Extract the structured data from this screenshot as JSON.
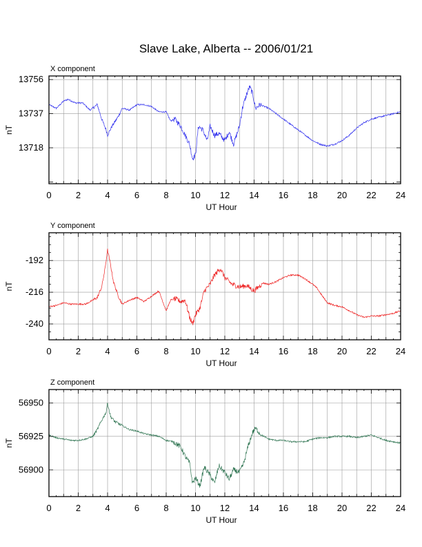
{
  "title": "Slave Lake, Alberta -- 2006/01/21",
  "chart_data": [
    {
      "type": "line",
      "title": "X component",
      "xlabel": "UT Hour",
      "ylabel": "nT",
      "xlim": [
        0,
        24
      ],
      "ylim": [
        13698,
        13758
      ],
      "xticks": [
        0,
        2,
        4,
        6,
        8,
        10,
        12,
        14,
        16,
        18,
        20,
        22,
        24
      ],
      "yticks": [
        13718,
        13737,
        13756
      ],
      "color": "#3333ee",
      "grid": true,
      "series": [
        {
          "x": [
            0,
            0.5,
            1,
            1.3,
            1.8,
            2.3,
            2.8,
            3.3,
            3.6,
            3.9,
            4.0,
            4.3,
            4.7,
            5.0,
            5.5,
            6.0,
            6.5,
            7.0,
            7.5,
            8.0,
            8.3,
            8.6,
            9.0,
            9.3,
            9.6,
            9.8,
            10.0,
            10.2,
            10.5,
            10.8,
            11.0,
            11.3,
            11.6,
            12.0,
            12.3,
            12.6,
            13.0,
            13.2,
            13.5,
            13.7,
            13.9,
            14.1,
            14.4,
            15.0,
            15.5,
            16.0,
            16.5,
            17.0,
            17.5,
            18.0,
            18.5,
            19.0,
            19.5,
            20.0,
            20.5,
            21.0,
            21.5,
            22.0,
            22.5,
            23.0,
            23.5,
            24.0
          ],
          "y": [
            13742,
            13740,
            13744,
            13745,
            13743,
            13743,
            13739,
            13742,
            13734,
            13728,
            13725,
            13730,
            13735,
            13740,
            13739,
            13742,
            13742,
            13741,
            13738,
            13738,
            13733,
            13734,
            13730,
            13725,
            13720,
            13712,
            13714,
            13730,
            13728,
            13722,
            13730,
            13725,
            13726,
            13722,
            13727,
            13720,
            13730,
            13740,
            13748,
            13752,
            13748,
            13740,
            13742,
            13740,
            13737,
            13734,
            13731,
            13728,
            13725,
            13722,
            13720,
            13719,
            13720,
            13722,
            13725,
            13729,
            13732,
            13734,
            13735,
            13736,
            13737,
            13738
          ]
        }
      ]
    },
    {
      "type": "line",
      "title": "Y component",
      "xlabel": "UT Hour",
      "ylabel": "nT",
      "xlim": [
        0,
        24
      ],
      "ylim": [
        -252,
        -171
      ],
      "xticks": [
        0,
        2,
        4,
        6,
        8,
        10,
        12,
        14,
        16,
        18,
        20,
        22,
        24
      ],
      "yticks": [
        -192,
        -216,
        -240
      ],
      "color": "#ee2222",
      "grid": true,
      "series": [
        {
          "x": [
            0,
            0.5,
            1,
            1.5,
            2.0,
            2.5,
            3.0,
            3.3,
            3.6,
            3.8,
            4.0,
            4.2,
            4.4,
            4.7,
            5.0,
            5.5,
            6.0,
            6.5,
            7.0,
            7.5,
            7.8,
            8.0,
            8.3,
            8.6,
            9.0,
            9.3,
            9.6,
            9.8,
            10.0,
            10.3,
            10.6,
            11.0,
            11.3,
            11.7,
            12.0,
            12.5,
            13.0,
            13.5,
            14.0,
            14.3,
            14.6,
            15.0,
            15.5,
            16.0,
            16.5,
            17.0,
            17.5,
            18.0,
            18.3,
            18.6,
            19.0,
            19.5,
            20.0,
            20.5,
            21.0,
            21.5,
            22.0,
            22.5,
            23.0,
            23.5,
            24.0
          ],
          "y": [
            -227,
            -226,
            -224,
            -225,
            -225,
            -225,
            -222,
            -220,
            -212,
            -200,
            -184,
            -195,
            -208,
            -218,
            -225,
            -222,
            -220,
            -223,
            -219,
            -215,
            -224,
            -230,
            -222,
            -221,
            -223,
            -222,
            -235,
            -240,
            -233,
            -228,
            -215,
            -210,
            -203,
            -198,
            -205,
            -210,
            -212,
            -211,
            -215,
            -212,
            -209,
            -210,
            -208,
            -205,
            -203,
            -203,
            -206,
            -210,
            -213,
            -218,
            -224,
            -226,
            -227,
            -230,
            -233,
            -235,
            -234,
            -234,
            -233,
            -232,
            -230
          ]
        }
      ]
    },
    {
      "type": "line",
      "title": "Z component",
      "xlabel": "UT Hour",
      "ylabel": "nT",
      "xlim": [
        0,
        24
      ],
      "ylim": [
        56880,
        56960
      ],
      "xticks": [
        0,
        2,
        4,
        6,
        8,
        10,
        12,
        14,
        16,
        18,
        20,
        22,
        24
      ],
      "yticks": [
        56900,
        56925,
        56950
      ],
      "color": "#337755",
      "grid": true,
      "series": [
        {
          "x": [
            0,
            0.5,
            1,
            1.5,
            2.0,
            2.5,
            3.0,
            3.3,
            3.6,
            3.9,
            4.0,
            4.2,
            4.5,
            5.0,
            5.5,
            6.0,
            6.5,
            7.0,
            7.5,
            8.0,
            8.5,
            9.0,
            9.3,
            9.6,
            9.8,
            10.0,
            10.3,
            10.6,
            11.0,
            11.3,
            11.6,
            12.0,
            12.3,
            12.6,
            13.0,
            13.3,
            13.6,
            13.9,
            14.1,
            14.5,
            15.0,
            15.5,
            16.0,
            16.5,
            17.0,
            17.5,
            18.0,
            18.5,
            19.0,
            19.5,
            20.0,
            20.5,
            21.0,
            21.5,
            22.0,
            22.5,
            23.0,
            23.5,
            24.0
          ],
          "y": [
            56926,
            56924,
            56923,
            56922,
            56922,
            56923,
            56925,
            56930,
            56937,
            56943,
            56950,
            56940,
            56936,
            56933,
            56930,
            56929,
            56927,
            56926,
            56925,
            56922,
            56921,
            56917,
            56910,
            56905,
            56890,
            56894,
            56888,
            56902,
            56896,
            56890,
            56903,
            56898,
            56893,
            56900,
            56898,
            56905,
            56918,
            56928,
            56931,
            56926,
            56923,
            56922,
            56922,
            56921,
            56921,
            56921,
            56923,
            56924,
            56924,
            56925,
            56925,
            56925,
            56924,
            56925,
            56926,
            56924,
            56922,
            56921,
            56920
          ]
        }
      ]
    }
  ]
}
